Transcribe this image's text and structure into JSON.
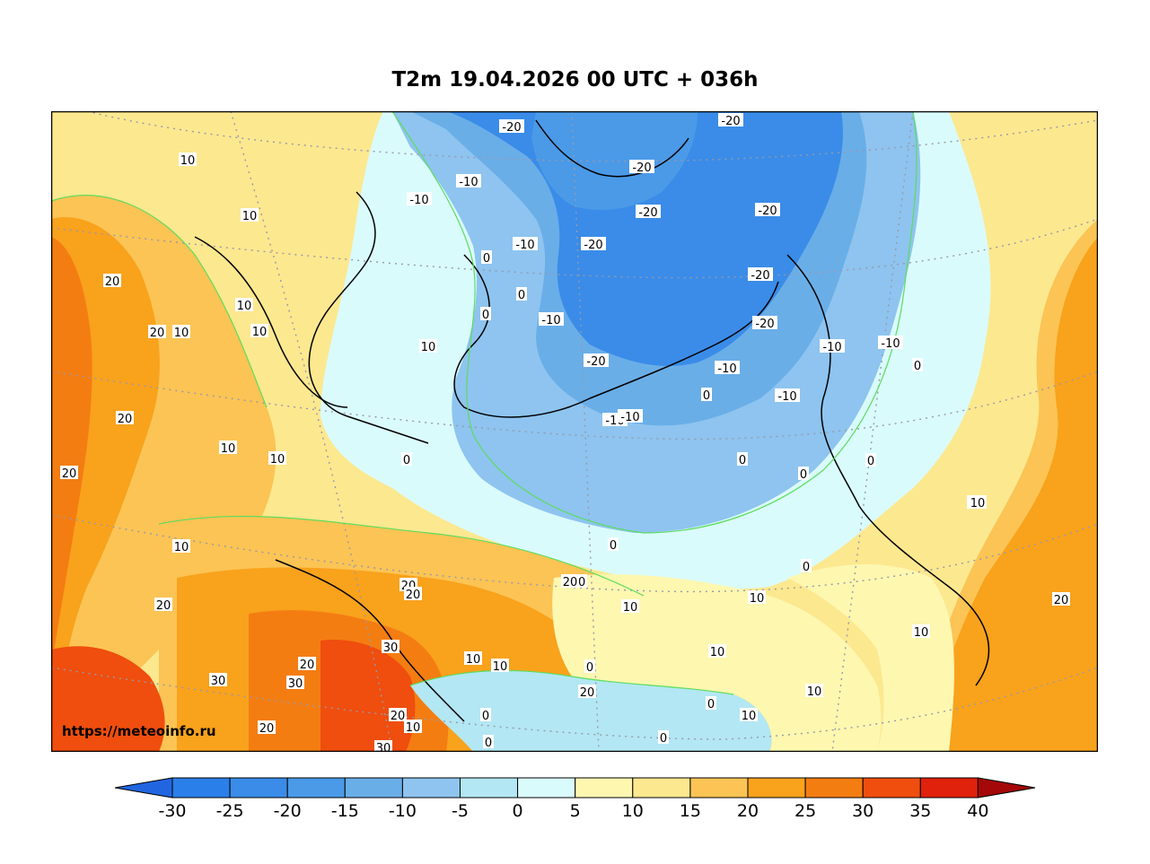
{
  "title": "T2m 19.04.2026 00 UTC + 036h",
  "credit": "https://meteoinfo.ru",
  "colorbar": {
    "ticks": [
      "-30",
      "-25",
      "-20",
      "-15",
      "-10",
      "-5",
      "0",
      "5",
      "10",
      "15",
      "20",
      "25",
      "30",
      "35",
      "40"
    ],
    "colors": [
      "#2b7fe8",
      "#3a8ce8",
      "#4a9ae8",
      "#6aaee8",
      "#8ec4ef",
      "#b3e7f3",
      "#dafbfc",
      "#fdf7b0",
      "#fce88f",
      "#fbc454",
      "#f9a21c",
      "#f47d12",
      "#ef4e0e",
      "#e0210c",
      "#c00d0b"
    ],
    "under_color": "#2166e0",
    "over_color": "#a50808"
  },
  "map_region_colors": {
    "ocean_north": "#dafbfc",
    "atlantic_warm": "#fdf7b0",
    "arctic_cold": "#8ec4ef",
    "deep_cold": "#3a8ce8",
    "south_warm": "#f9a21c",
    "south_hot": "#ef4e0e",
    "pacific": "#fce88f"
  },
  "contour_labels": [
    "-20",
    "-20",
    "-10",
    "-20",
    "-10",
    "-20",
    "-10",
    "-20",
    "-20",
    "-20",
    "-20",
    "-10",
    "-20",
    "-10",
    "-10",
    "-10",
    "-10",
    "-10",
    "-10",
    "10",
    "10",
    "20",
    "20",
    "10",
    "10",
    "10",
    "10",
    "20",
    "20",
    "10",
    "10",
    "20",
    "10",
    "20",
    "10",
    "10",
    "20",
    "20",
    "20",
    "30",
    "30",
    "20",
    "30",
    "20",
    "10",
    "30",
    "20",
    "10",
    "20",
    "10",
    "10",
    "10",
    "10",
    "10",
    "20",
    "10",
    "20",
    "10",
    "0",
    "0",
    "0",
    "0",
    "0",
    "0",
    "0",
    "0",
    "0",
    "0",
    "0",
    "0",
    "0",
    "0",
    "0",
    "0"
  ]
}
